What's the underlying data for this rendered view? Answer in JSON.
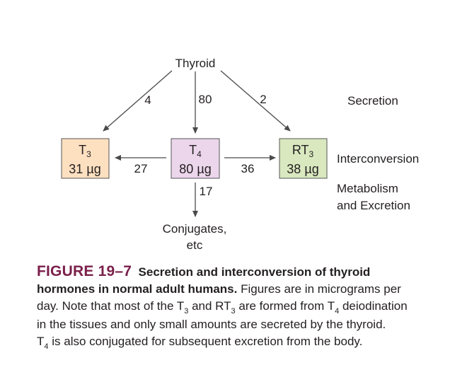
{
  "diagram": {
    "source": "Thyroid",
    "nodes": {
      "t3": {
        "name": "T",
        "sub": "3",
        "amount": "31 µg",
        "fill": "#fde0c0"
      },
      "t4": {
        "name": "T",
        "sub": "4",
        "amount": "80 µg",
        "fill": "#ecd6ec"
      },
      "rt3": {
        "name": "RT",
        "sub": "3",
        "amount": "38 µg",
        "fill": "#d9e8bf"
      }
    },
    "flows": {
      "thyroid_to_t3": "4",
      "thyroid_to_t4": "80",
      "thyroid_to_rt3": "2",
      "t4_to_t3": "27",
      "t4_to_rt3": "36",
      "t4_to_conjugates": "17"
    },
    "sink": {
      "line1": "Conjugates,",
      "line2": "etc"
    },
    "row_labels": {
      "secretion": "Secretion",
      "interconversion": "Interconversion",
      "metabolism_line1": "Metabolism",
      "metabolism_line2": "and Excretion"
    }
  },
  "caption": {
    "figure_label": "FIGURE 19–7",
    "title_part1": "Secretion and interconversion of thyroid",
    "title_part2": "hormones in normal adult humans.",
    "body_1": "Figures are in micrograms per",
    "body_2": "day. Note that most of the T",
    "sub_3a": "3",
    "body_3": "and RT",
    "sub_3b": "3",
    "body_4": "are formed from T",
    "sub_4a": "4",
    "body_5": "deiodination",
    "body_6": "in the tissues and only small amounts are secreted by the thyroid.",
    "body_7": "T",
    "sub_4b": "4",
    "body_8": "is also conjugated for subsequent excretion from the body."
  },
  "colors": {
    "figure_label": "#7a1f4a",
    "box_stroke": "#555555",
    "arrow": "#4a4a4a"
  }
}
